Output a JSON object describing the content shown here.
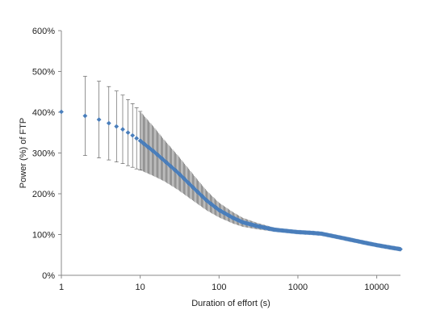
{
  "chart_data": {
    "type": "scatter",
    "xlabel": "Duration of effort (s)",
    "ylabel": "Power (%) of FTP",
    "x_scale": "log",
    "xlim": [
      1,
      20000
    ],
    "ylim": [
      0,
      600
    ],
    "x_ticks": [
      1,
      10,
      100,
      1000,
      10000
    ],
    "x_tick_labels": [
      "1",
      "10",
      "100",
      "1000",
      "10000"
    ],
    "y_ticks": [
      0,
      100,
      200,
      300,
      400,
      500,
      600
    ],
    "y_tick_labels": [
      "0%",
      "100%",
      "200%",
      "300%",
      "400%",
      "500%",
      "600%"
    ],
    "grid": false,
    "legend": "none",
    "marker_color": "#4a7ebb",
    "error_bar_color": "#4d4d4d",
    "series": [
      {
        "points": [
          {
            "x": 1,
            "y": 401,
            "err": 0
          },
          {
            "x": 2,
            "y": 391,
            "err": 97
          },
          {
            "x": 3,
            "y": 382,
            "err": 94
          },
          {
            "x": 4,
            "y": 373,
            "err": 90
          },
          {
            "x": 5,
            "y": 365,
            "err": 87
          },
          {
            "x": 6,
            "y": 358,
            "err": 84
          },
          {
            "x": 7,
            "y": 350,
            "err": 81
          },
          {
            "x": 8,
            "y": 343,
            "err": 78
          },
          {
            "x": 9,
            "y": 336,
            "err": 75
          },
          {
            "x": 10,
            "y": 330,
            "err": 72
          },
          {
            "x": 15,
            "y": 303,
            "err": 60
          },
          {
            "x": 20,
            "y": 282,
            "err": 51
          },
          {
            "x": 30,
            "y": 252,
            "err": 42
          },
          {
            "x": 50,
            "y": 210,
            "err": 31
          },
          {
            "x": 70,
            "y": 183,
            "err": 24
          },
          {
            "x": 100,
            "y": 160,
            "err": 18
          },
          {
            "x": 150,
            "y": 141,
            "err": 14
          },
          {
            "x": 200,
            "y": 130,
            "err": 11
          },
          {
            "x": 300,
            "y": 121,
            "err": 8
          },
          {
            "x": 500,
            "y": 112,
            "err": 5
          },
          {
            "x": 700,
            "y": 109,
            "err": 4
          },
          {
            "x": 1000,
            "y": 106,
            "err": 3
          },
          {
            "x": 1500,
            "y": 104,
            "err": 3
          },
          {
            "x": 2000,
            "y": 102,
            "err": 3
          },
          {
            "x": 3000,
            "y": 95,
            "err": 3
          },
          {
            "x": 5000,
            "y": 86,
            "err": 3
          },
          {
            "x": 7000,
            "y": 80,
            "err": 4
          },
          {
            "x": 10000,
            "y": 74,
            "err": 4
          },
          {
            "x": 15000,
            "y": 68,
            "err": 5
          },
          {
            "x": 20000,
            "y": 64,
            "err": 5
          }
        ]
      }
    ]
  }
}
